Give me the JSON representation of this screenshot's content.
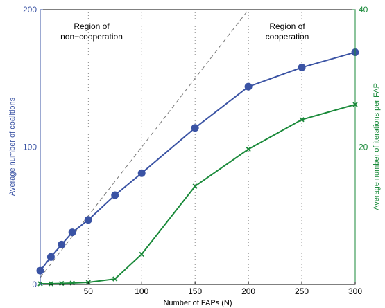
{
  "chart_data": {
    "type": "line",
    "xlabel": "Number of FAPs (N)",
    "ylabel_left": "Average number of coalitions",
    "ylabel_right": "Average number of iterations per FAP",
    "xlim": [
      5,
      300
    ],
    "ylim_left": [
      0,
      200
    ],
    "ylim_right": [
      0,
      40
    ],
    "x_ticks": [
      50,
      100,
      150,
      200,
      250,
      300
    ],
    "y_ticks_left": [
      0,
      100,
      200
    ],
    "y_ticks_right": [
      20,
      40
    ],
    "grid": true,
    "annotations": [
      {
        "lines": [
          "Region of",
          "non−cooperation"
        ]
      },
      {
        "lines": [
          "Region of",
          "cooperation"
        ]
      }
    ],
    "series": [
      {
        "axis": "left",
        "color": "#3a53a4",
        "marker": "circle",
        "x": [
          5,
          15,
          25,
          35,
          50,
          75,
          100,
          150,
          200,
          250,
          300
        ],
        "values": [
          10,
          20,
          29,
          38,
          47,
          65,
          81,
          114,
          144,
          158,
          169
        ]
      },
      {
        "axis": "right",
        "color": "#1a8a3a",
        "marker": "x",
        "x": [
          5,
          15,
          25,
          35,
          50,
          75,
          100,
          150,
          200,
          250,
          300
        ],
        "values": [
          0.1,
          0.1,
          0.15,
          0.2,
          0.3,
          0.8,
          4.4,
          14.3,
          19.7,
          24.0,
          26.2
        ]
      },
      {
        "axis": "left",
        "color": "#777777",
        "style": "dashed",
        "x": [
          5,
          200
        ],
        "values": [
          5,
          200
        ]
      }
    ]
  }
}
